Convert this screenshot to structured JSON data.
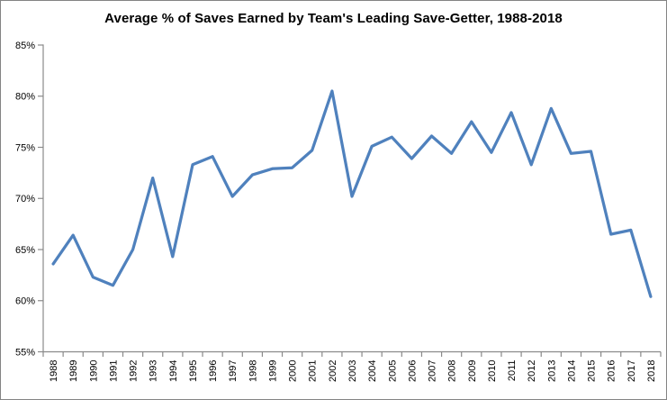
{
  "chart_data": {
    "type": "line",
    "title": "Average % of Saves Earned by Team's Leading Save-Getter, 1988-2018",
    "categories": [
      "1988",
      "1989",
      "1990",
      "1991",
      "1992",
      "1993",
      "1994",
      "1995",
      "1996",
      "1997",
      "1998",
      "1999",
      "2000",
      "2001",
      "2002",
      "2003",
      "2004",
      "2005",
      "2006",
      "2007",
      "2008",
      "2009",
      "2010",
      "2011",
      "2012",
      "2013",
      "2014",
      "2015",
      "2016",
      "2017",
      "2018"
    ],
    "values": [
      63.6,
      66.4,
      62.3,
      61.5,
      65.0,
      72.0,
      64.3,
      73.3,
      74.1,
      70.2,
      72.3,
      72.9,
      73.0,
      74.7,
      80.5,
      70.2,
      75.1,
      76.0,
      73.9,
      76.1,
      74.4,
      77.5,
      74.5,
      78.4,
      73.3,
      78.8,
      74.4,
      74.6,
      66.5,
      66.9,
      60.4
    ],
    "xlabel": "",
    "ylabel": "",
    "ylim": [
      55,
      85
    ],
    "ytick_step": 5,
    "ytick_labels": [
      "55%",
      "60%",
      "65%",
      "70%",
      "75%",
      "80%",
      "85%"
    ],
    "grid": false,
    "legend": "none",
    "colors": {
      "line": "#4F81BD",
      "axis": "#8A8A8A",
      "text": "#000000",
      "border": "#848484",
      "background": "#FFFFFF"
    }
  }
}
